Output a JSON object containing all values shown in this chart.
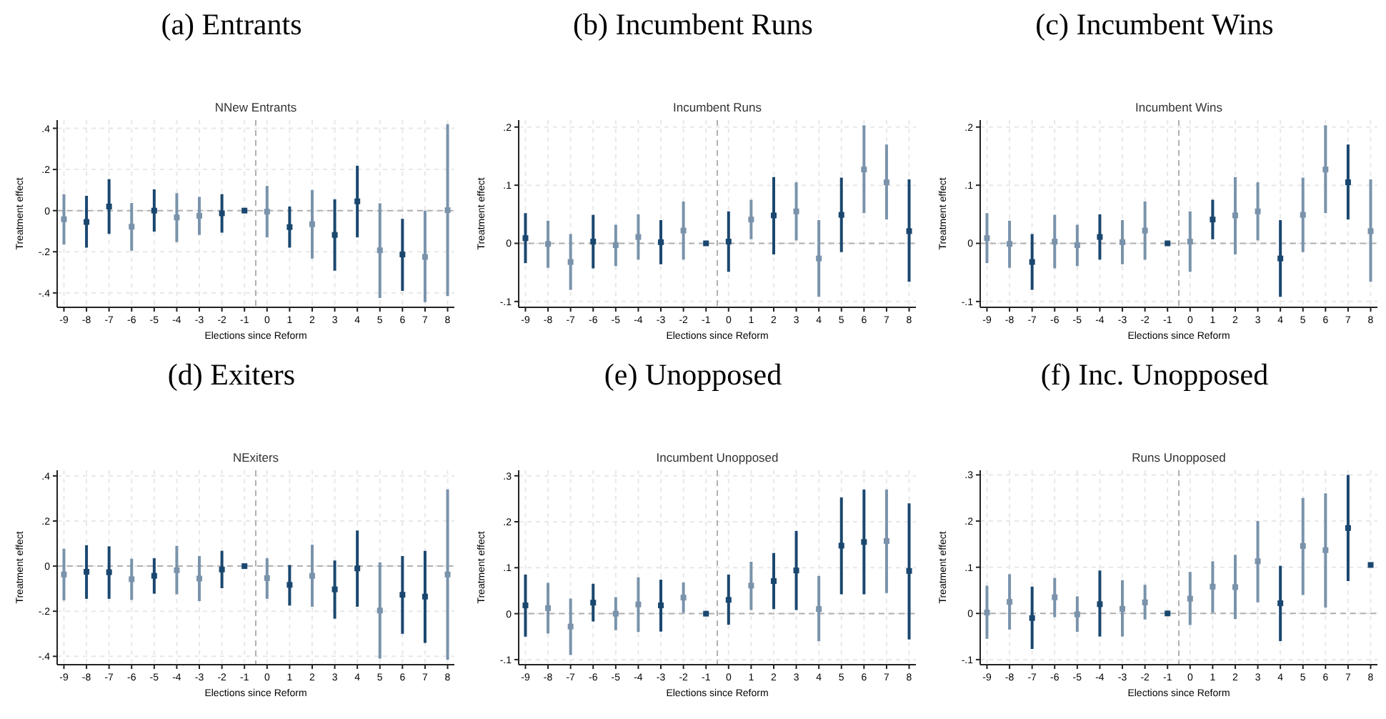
{
  "chart_data": [
    {
      "type": "scatter",
      "title": "(a) Entrants",
      "subtitle": "NNew Entrants",
      "xlabel": "Elections since Reform",
      "ylabel": "Treatment effect",
      "xlim": [
        -9.3,
        8.3
      ],
      "xticks": [
        -9,
        -8,
        -7,
        -6,
        -5,
        -4,
        -3,
        -2,
        -1,
        0,
        1,
        2,
        3,
        4,
        5,
        6,
        7,
        8
      ],
      "ylim": [
        -0.47,
        0.44
      ],
      "yticks": [
        {
          "value": -0.4,
          "label": "-.4"
        },
        {
          "value": -0.2,
          "label": "-.2"
        },
        {
          "value": 0,
          "label": "0"
        },
        {
          "value": 0.2,
          "label": ".2"
        },
        {
          "value": 0.4,
          "label": ".4"
        }
      ],
      "grid": true,
      "marker": "square",
      "ref_lines": [
        {
          "axis": "y",
          "value": 0,
          "line_style": "dashed"
        },
        {
          "axis": "x",
          "value": -0.5,
          "line_style": "dashed"
        }
      ],
      "series": [
        {
          "color": "#1a476f",
          "x": [
            -8,
            -7,
            -5,
            -2,
            -1,
            1,
            3,
            4,
            6
          ],
          "values": [
            -0.055,
            0.02,
            0.0,
            -0.013,
            0,
            -0.08,
            -0.118,
            0.045,
            -0.213
          ],
          "errors": [
            [
              -0.18,
              0.072
            ],
            [
              -0.113,
              0.153
            ],
            [
              -0.102,
              0.103
            ],
            [
              -0.107,
              0.08
            ],
            null,
            [
              -0.18,
              0.02
            ],
            [
              -0.292,
              0.055
            ],
            [
              -0.13,
              0.218
            ],
            [
              -0.39,
              -0.04
            ]
          ]
        },
        {
          "color": "#7a93ab",
          "x": [
            -9,
            -6,
            -4,
            -3,
            0,
            2,
            5,
            7,
            8
          ],
          "values": [
            -0.042,
            -0.078,
            -0.033,
            -0.025,
            -0.005,
            -0.066,
            -0.193,
            -0.225,
            0.002
          ],
          "errors": [
            [
              -0.165,
              0.08
            ],
            [
              -0.195,
              0.037
            ],
            [
              -0.153,
              0.085
            ],
            [
              -0.118,
              0.067
            ],
            [
              -0.13,
              0.12
            ],
            [
              -0.233,
              0.1
            ],
            [
              -0.425,
              0.035
            ],
            [
              -0.445,
              0.0
            ],
            [
              -0.415,
              0.42
            ]
          ]
        }
      ]
    },
    {
      "type": "scatter",
      "title": "(b) Incumbent Runs",
      "subtitle": "Incumbent Runs",
      "xlabel": "Elections since Reform",
      "ylabel": "Treatment effect",
      "xlim": [
        -9.3,
        8.3
      ],
      "xticks": [
        -9,
        -8,
        -7,
        -6,
        -5,
        -4,
        -3,
        -2,
        -1,
        0,
        1,
        2,
        3,
        4,
        5,
        6,
        7,
        8
      ],
      "ylim": [
        -0.11,
        0.212
      ],
      "yticks": [
        {
          "value": -0.1,
          "label": "-.1"
        },
        {
          "value": 0,
          "label": "0"
        },
        {
          "value": 0.1,
          "label": ".1"
        },
        {
          "value": 0.2,
          "label": ".2"
        }
      ],
      "grid": true,
      "marker": "square",
      "ref_lines": [
        {
          "axis": "y",
          "value": 0,
          "line_style": "dashed"
        },
        {
          "axis": "x",
          "value": -0.5,
          "line_style": "dashed"
        }
      ],
      "series": [
        {
          "color": "#1a476f",
          "x": [
            -9,
            -6,
            -3,
            -1,
            0,
            2,
            5,
            8
          ],
          "values": [
            0.009,
            0.003,
            0.002,
            0,
            0.003,
            0.048,
            0.049,
            0.021
          ],
          "errors": [
            [
              -0.034,
              0.052
            ],
            [
              -0.043,
              0.049
            ],
            [
              -0.036,
              0.04
            ],
            null,
            [
              -0.049,
              0.055
            ],
            [
              -0.019,
              0.114
            ],
            [
              -0.015,
              0.113
            ],
            [
              -0.066,
              0.11
            ]
          ]
        },
        {
          "color": "#7a93ab",
          "x": [
            -8,
            -7,
            -5,
            -4,
            -2,
            1,
            3,
            4,
            6,
            7
          ],
          "values": [
            -0.001,
            -0.032,
            -0.003,
            0.011,
            0.022,
            0.041,
            0.055,
            -0.026,
            0.127,
            0.105
          ],
          "errors": [
            [
              -0.042,
              0.039
            ],
            [
              -0.08,
              0.016
            ],
            [
              -0.039,
              0.032
            ],
            [
              -0.028,
              0.05
            ],
            [
              -0.028,
              0.072
            ],
            [
              0.007,
              0.075
            ],
            [
              0.005,
              0.105
            ],
            [
              -0.092,
              0.04
            ],
            [
              0.052,
              0.203
            ],
            [
              0.041,
              0.17
            ]
          ]
        }
      ]
    },
    {
      "type": "scatter",
      "title": "(c) Incumbent Wins",
      "subtitle": "Incumbent Wins",
      "xlabel": "Elections since Reform",
      "ylabel": "Treatment effect",
      "xlim": [
        -9.3,
        8.3
      ],
      "xticks": [
        -9,
        -8,
        -7,
        -6,
        -5,
        -4,
        -3,
        -2,
        -1,
        0,
        1,
        2,
        3,
        4,
        5,
        6,
        7,
        8
      ],
      "ylim": [
        -0.11,
        0.212
      ],
      "yticks": [
        {
          "value": -0.1,
          "label": "-.1"
        },
        {
          "value": 0,
          "label": "0"
        },
        {
          "value": 0.1,
          "label": ".1"
        },
        {
          "value": 0.2,
          "label": ".2"
        }
      ],
      "grid": true,
      "marker": "square",
      "ref_lines": [
        {
          "axis": "y",
          "value": 0,
          "line_style": "dashed"
        },
        {
          "axis": "x",
          "value": -0.5,
          "line_style": "dashed"
        }
      ],
      "series": [
        {
          "color": "#1a476f",
          "x": [
            -7,
            -4,
            -1,
            1,
            4,
            7
          ],
          "values": [
            -0.032,
            0.011,
            0,
            0.041,
            -0.026,
            0.105
          ],
          "errors": [
            [
              -0.08,
              0.016
            ],
            [
              -0.028,
              0.05
            ],
            null,
            [
              0.007,
              0.075
            ],
            [
              -0.092,
              0.04
            ],
            [
              0.041,
              0.17
            ]
          ]
        },
        {
          "color": "#7a93ab",
          "x": [
            -9,
            -8,
            -6,
            -5,
            -3,
            -2,
            0,
            2,
            3,
            5,
            6,
            8
          ],
          "values": [
            0.009,
            -0.001,
            0.003,
            -0.003,
            0.002,
            0.022,
            0.003,
            0.048,
            0.055,
            0.049,
            0.127,
            0.021
          ],
          "errors": [
            [
              -0.034,
              0.052
            ],
            [
              -0.042,
              0.039
            ],
            [
              -0.043,
              0.049
            ],
            [
              -0.039,
              0.032
            ],
            [
              -0.036,
              0.04
            ],
            [
              -0.028,
              0.072
            ],
            [
              -0.049,
              0.055
            ],
            [
              -0.019,
              0.114
            ],
            [
              0.005,
              0.105
            ],
            [
              -0.015,
              0.113
            ],
            [
              0.052,
              0.203
            ],
            [
              -0.066,
              0.11
            ]
          ]
        }
      ]
    },
    {
      "type": "scatter",
      "title": "(d) Exiters",
      "subtitle": "NExiters",
      "xlabel": "Elections since Reform",
      "ylabel": "Treatment effect",
      "xlim": [
        -9.3,
        8.3
      ],
      "xticks": [
        -9,
        -8,
        -7,
        -6,
        -5,
        -4,
        -3,
        -2,
        -1,
        0,
        1,
        2,
        3,
        4,
        5,
        6,
        7,
        8
      ],
      "ylim": [
        -0.437,
        0.425
      ],
      "yticks": [
        {
          "value": -0.4,
          "label": "-.4"
        },
        {
          "value": -0.2,
          "label": "-.2"
        },
        {
          "value": 0,
          "label": "0"
        },
        {
          "value": 0.2,
          "label": ".2"
        },
        {
          "value": 0.4,
          "label": ".4"
        }
      ],
      "grid": true,
      "marker": "square",
      "ref_lines": [
        {
          "axis": "y",
          "value": 0,
          "line_style": "dashed"
        },
        {
          "axis": "x",
          "value": -0.5,
          "line_style": "dashed"
        }
      ],
      "series": [
        {
          "color": "#1a476f",
          "x": [
            -8,
            -7,
            -5,
            -2,
            -1,
            1,
            3,
            4,
            6,
            7
          ],
          "values": [
            -0.025,
            -0.027,
            -0.043,
            -0.015,
            0,
            -0.083,
            -0.103,
            -0.01,
            -0.127,
            -0.135
          ],
          "errors": [
            [
              -0.145,
              0.093
            ],
            [
              -0.145,
              0.088
            ],
            [
              -0.122,
              0.035
            ],
            [
              -0.098,
              0.068
            ],
            null,
            [
              -0.175,
              0.005
            ],
            [
              -0.233,
              0.025
            ],
            [
              -0.18,
              0.158
            ],
            [
              -0.3,
              0.045
            ],
            [
              -0.34,
              0.068
            ]
          ]
        },
        {
          "color": "#7a93ab",
          "x": [
            -9,
            -6,
            -4,
            -3,
            0,
            2,
            5,
            8
          ],
          "values": [
            -0.037,
            -0.058,
            -0.018,
            -0.055,
            -0.053,
            -0.043,
            -0.197,
            -0.037
          ],
          "errors": [
            [
              -0.152,
              0.077
            ],
            [
              -0.15,
              0.033
            ],
            [
              -0.125,
              0.09
            ],
            [
              -0.155,
              0.045
            ],
            [
              -0.145,
              0.035
            ],
            [
              -0.18,
              0.095
            ],
            [
              -0.41,
              0.017
            ],
            [
              -0.415,
              0.34
            ]
          ]
        }
      ]
    },
    {
      "type": "scatter",
      "title": "(e) Unopposed",
      "subtitle": "Incumbent Unopposed",
      "xlabel": "Elections since Reform",
      "ylabel": "Treatment effect",
      "xlim": [
        -9.3,
        8.3
      ],
      "xticks": [
        -9,
        -8,
        -7,
        -6,
        -5,
        -4,
        -3,
        -2,
        -1,
        0,
        1,
        2,
        3,
        4,
        5,
        6,
        7,
        8
      ],
      "ylim": [
        -0.111,
        0.312
      ],
      "yticks": [
        {
          "value": -0.1,
          "label": "-.1"
        },
        {
          "value": 0,
          "label": "0"
        },
        {
          "value": 0.1,
          "label": ".1"
        },
        {
          "value": 0.2,
          "label": ".2"
        },
        {
          "value": 0.3,
          "label": ".3"
        }
      ],
      "grid": true,
      "marker": "square",
      "ref_lines": [
        {
          "axis": "y",
          "value": 0,
          "line_style": "dashed"
        },
        {
          "axis": "x",
          "value": -0.5,
          "line_style": "dashed"
        }
      ],
      "series": [
        {
          "color": "#1a476f",
          "x": [
            -9,
            -6,
            -3,
            -1,
            0,
            2,
            3,
            5,
            6,
            8
          ],
          "values": [
            0.018,
            0.024,
            0.018,
            0,
            0.03,
            0.071,
            0.094,
            0.148,
            0.156,
            0.093
          ],
          "errors": [
            [
              -0.05,
              0.085
            ],
            [
              -0.017,
              0.065
            ],
            [
              -0.039,
              0.074
            ],
            null,
            [
              -0.024,
              0.085
            ],
            [
              0.01,
              0.132
            ],
            [
              0.008,
              0.18
            ],
            [
              0.042,
              0.253
            ],
            [
              0.042,
              0.27
            ],
            [
              -0.056,
              0.24
            ]
          ]
        },
        {
          "color": "#7a93ab",
          "x": [
            -8,
            -7,
            -5,
            -4,
            -2,
            1,
            4,
            7
          ],
          "values": [
            0.012,
            -0.028,
            0.0,
            0.02,
            0.035,
            0.061,
            0.01,
            0.158
          ],
          "errors": [
            [
              -0.043,
              0.067
            ],
            [
              -0.09,
              0.033
            ],
            [
              -0.036,
              0.036
            ],
            [
              -0.04,
              0.079
            ],
            [
              0.002,
              0.068
            ],
            [
              0.008,
              0.113
            ],
            [
              -0.06,
              0.082
            ],
            [
              0.045,
              0.27
            ]
          ]
        }
      ]
    },
    {
      "type": "scatter",
      "title": "(f) Inc. Unopposed",
      "subtitle": "Runs Unopposed",
      "xlabel": "Elections since Reform",
      "ylabel": "Treatment effect",
      "xlim": [
        -9.3,
        8.3
      ],
      "xticks": [
        -9,
        -8,
        -7,
        -6,
        -5,
        -4,
        -3,
        -2,
        -1,
        0,
        1,
        2,
        3,
        4,
        5,
        6,
        7,
        8
      ],
      "ylim": [
        -0.111,
        0.31
      ],
      "yticks": [
        {
          "value": -0.1,
          "label": "-.1"
        },
        {
          "value": 0,
          "label": "0"
        },
        {
          "value": 0.1,
          "label": ".1"
        },
        {
          "value": 0.2,
          "label": ".2"
        },
        {
          "value": 0.3,
          "label": ".3"
        }
      ],
      "grid": true,
      "marker": "square",
      "ref_lines": [
        {
          "axis": "y",
          "value": 0,
          "line_style": "dashed"
        },
        {
          "axis": "x",
          "value": -0.5,
          "line_style": "dashed"
        }
      ],
      "series": [
        {
          "color": "#1a476f",
          "x": [
            -7,
            -4,
            -1,
            4,
            7,
            8
          ],
          "values": [
            -0.01,
            0.02,
            0,
            0.022,
            0.185,
            0.105
          ],
          "errors": [
            [
              -0.077,
              0.058
            ],
            [
              -0.05,
              0.093
            ],
            null,
            [
              -0.06,
              0.103
            ],
            [
              0.07,
              0.3
            ],
            null
          ]
        },
        {
          "color": "#7a93ab",
          "x": [
            -9,
            -8,
            -6,
            -5,
            -3,
            -2,
            0,
            1,
            2,
            3,
            5,
            6
          ],
          "values": [
            0.002,
            0.025,
            0.035,
            -0.002,
            0.01,
            0.024,
            0.032,
            0.058,
            0.057,
            0.113,
            0.146,
            0.137
          ],
          "errors": [
            [
              -0.055,
              0.06
            ],
            [
              -0.035,
              0.085
            ],
            [
              -0.008,
              0.077
            ],
            [
              -0.04,
              0.037
            ],
            [
              -0.05,
              0.072
            ],
            [
              -0.013,
              0.062
            ],
            [
              -0.025,
              0.09
            ],
            [
              0.002,
              0.113
            ],
            [
              -0.012,
              0.127
            ],
            [
              0.024,
              0.2
            ],
            [
              0.04,
              0.25
            ],
            [
              0.013,
              0.26
            ]
          ]
        }
      ]
    }
  ]
}
